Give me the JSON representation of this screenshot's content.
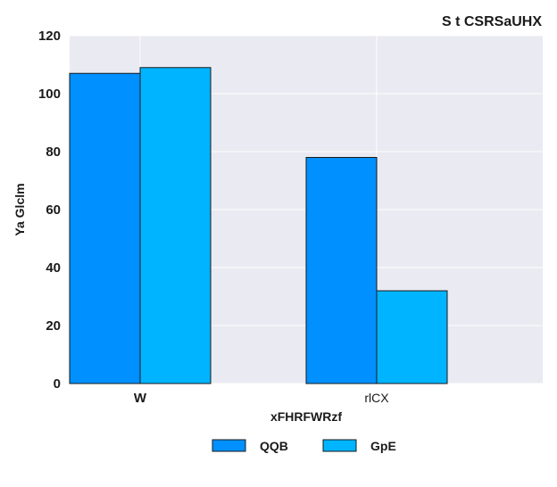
{
  "chart_data": {
    "type": "bar",
    "title": "S t  CSRSaUHX",
    "xlabel": "xFHRFWRzf",
    "ylabel": "Ya  Glclm",
    "categories": [
      "W",
      "rlCX"
    ],
    "series": [
      {
        "name": "QQB",
        "values": [
          107,
          78
        ],
        "color": "#0090ff"
      },
      {
        "name": "GpE",
        "values": [
          109,
          32
        ],
        "color": "#00b4ff"
      }
    ],
    "ylim": [
      0,
      120
    ],
    "yticks": [
      0,
      20,
      40,
      60,
      80,
      100,
      120
    ],
    "grid": true,
    "legend_position": "bottom-center",
    "background_color": "#eaeaf2"
  }
}
